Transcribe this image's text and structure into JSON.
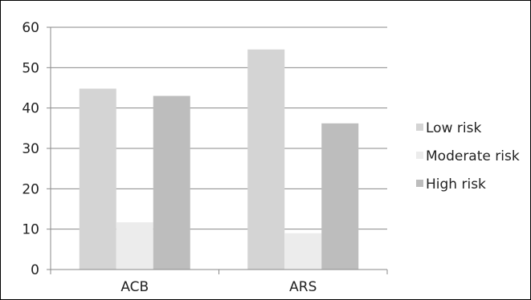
{
  "chart_data": {
    "type": "bar",
    "title": "",
    "xlabel": "",
    "ylabel": "",
    "categories": [
      "ACB",
      "ARS"
    ],
    "ylim": [
      0,
      60
    ],
    "yticks": [
      0,
      10,
      20,
      30,
      40,
      50,
      60
    ],
    "grid": true,
    "legend_position": "right",
    "series": [
      {
        "name": "Low risk",
        "values": [
          44.8,
          54.5
        ],
        "color": "#d4d4d4"
      },
      {
        "name": "Moderate risk",
        "values": [
          11.7,
          9.0
        ],
        "color": "#ececec"
      },
      {
        "name": "High risk",
        "values": [
          43.0,
          36.2
        ],
        "color": "#bdbdbd"
      }
    ]
  }
}
